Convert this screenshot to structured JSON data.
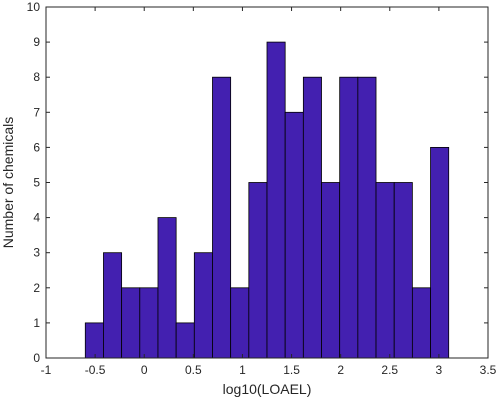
{
  "chart_data": {
    "type": "bar",
    "subtype": "histogram",
    "title": "",
    "xlabel": "log10(LOAEL)",
    "ylabel": "Number of chemicals",
    "xlim": [
      -1,
      3.5
    ],
    "ylim": [
      0,
      10
    ],
    "xticks": [
      -1,
      -0.5,
      0,
      0.5,
      1,
      1.5,
      2,
      2.5,
      3,
      3.5
    ],
    "xtick_labels": [
      "-1",
      "-0.5",
      "0",
      "0.5",
      "1",
      "1.5",
      "2",
      "2.5",
      "3",
      "3.5"
    ],
    "yticks": [
      0,
      1,
      2,
      3,
      4,
      5,
      6,
      7,
      8,
      9,
      10
    ],
    "ytick_labels": [
      "0",
      "1",
      "2",
      "3",
      "4",
      "5",
      "6",
      "7",
      "8",
      "9",
      "10"
    ],
    "bin_edges": [
      -0.6,
      -0.415,
      -0.23,
      -0.045,
      0.14,
      0.325,
      0.51,
      0.695,
      0.88,
      1.065,
      1.25,
      1.435,
      1.62,
      1.805,
      1.99,
      2.175,
      2.36,
      2.545,
      2.73,
      2.915,
      3.1
    ],
    "values": [
      1,
      3,
      2,
      2,
      4,
      1,
      3,
      8,
      2,
      5,
      9,
      7,
      8,
      5,
      8,
      8,
      5,
      5,
      2,
      6
    ],
    "bar_color": "#4320B0",
    "edge_color": "#000000",
    "grid": false,
    "box": true
  }
}
